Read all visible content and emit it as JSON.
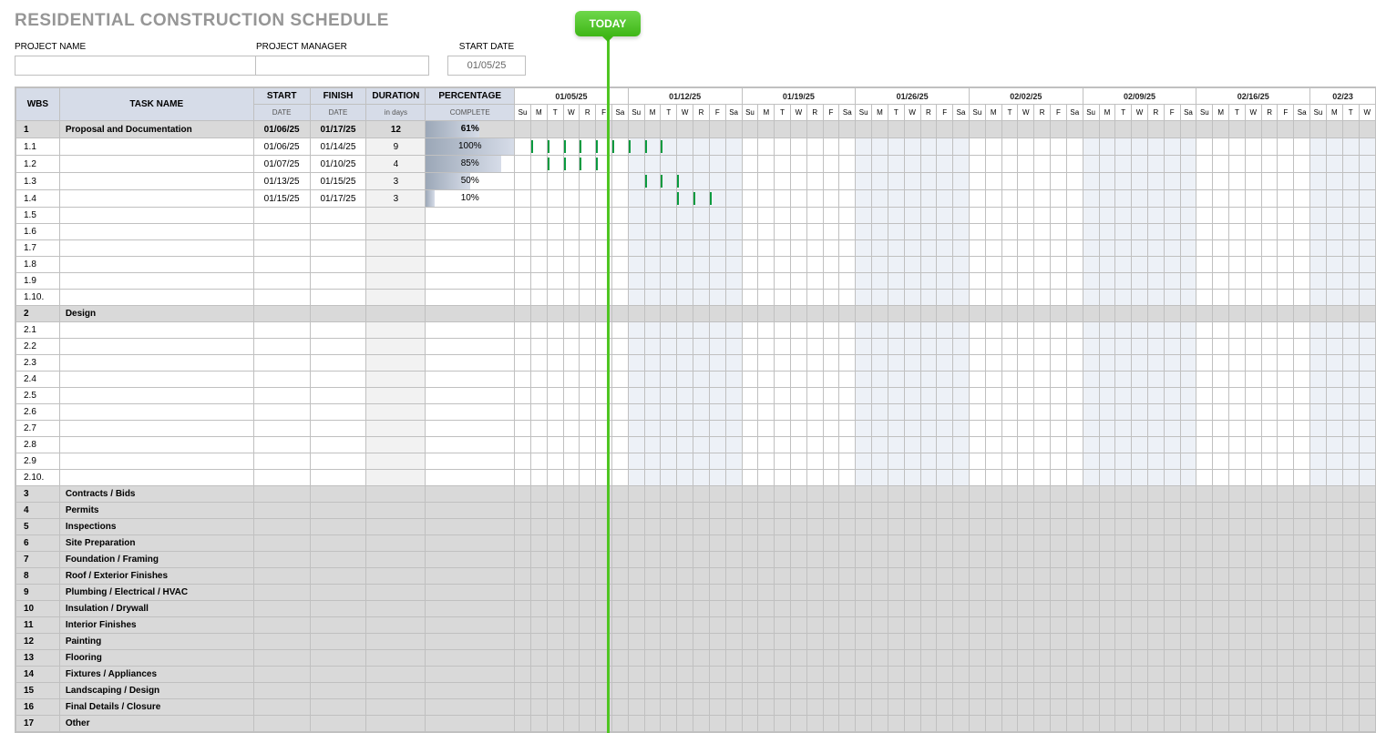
{
  "title": "RESIDENTIAL CONSTRUCTION SCHEDULE",
  "meta": {
    "project_name_label": "PROJECT NAME",
    "project_manager_label": "PROJECT MANAGER",
    "start_date_label": "START DATE",
    "start_date_value": "01/05/25",
    "today_label": "TODAY"
  },
  "columns": {
    "wbs": "WBS",
    "task": "TASK NAME",
    "start": "START",
    "start_sub": "DATE",
    "finish": "FINISH",
    "finish_sub": "DATE",
    "duration": "DURATION",
    "duration_sub": "in days",
    "pct": "PERCENTAGE",
    "pct_sub": "COMPLETE"
  },
  "weeks": [
    "01/05/25",
    "01/12/25",
    "01/19/25",
    "01/26/25",
    "02/02/25",
    "02/09/25",
    "02/16/25",
    "02/23"
  ],
  "days": [
    "Su",
    "M",
    "T",
    "W",
    "R",
    "F",
    "Sa"
  ],
  "today_offset_day": 6,
  "colors": {
    "header_bg": "#d6dce8",
    "phase_bg": "#d9d9d9",
    "alt_week_bg": "#edf1f7",
    "bar_green": "#0db54b",
    "today_line": "#4fc522",
    "pct_bar": "#9ba7b7",
    "title_color": "#969696"
  },
  "rows": [
    {
      "wbs": "1",
      "task": "Proposal and Documentation",
      "start": "01/06/25",
      "finish": "01/17/25",
      "dur": "12",
      "pct": 61,
      "phase": true
    },
    {
      "wbs": "1.1",
      "task": "",
      "start": "01/06/25",
      "finish": "01/14/25",
      "dur": "9",
      "pct": 100,
      "bar_start": 1,
      "bar_end": 9
    },
    {
      "wbs": "1.2",
      "task": "",
      "start": "01/07/25",
      "finish": "01/10/25",
      "dur": "4",
      "pct": 85,
      "bar_start": 2,
      "bar_end": 5
    },
    {
      "wbs": "1.3",
      "task": "",
      "start": "01/13/25",
      "finish": "01/15/25",
      "dur": "3",
      "pct": 50,
      "bar_start": 8,
      "bar_end": 10
    },
    {
      "wbs": "1.4",
      "task": "",
      "start": "01/15/25",
      "finish": "01/17/25",
      "dur": "3",
      "pct": 10,
      "bar_start": 10,
      "bar_end": 12
    },
    {
      "wbs": "1.5",
      "task": ""
    },
    {
      "wbs": "1.6",
      "task": ""
    },
    {
      "wbs": "1.7",
      "task": ""
    },
    {
      "wbs": "1.8",
      "task": ""
    },
    {
      "wbs": "1.9",
      "task": ""
    },
    {
      "wbs": "1.10.",
      "task": ""
    },
    {
      "wbs": "2",
      "task": "Design",
      "phase": true
    },
    {
      "wbs": "2.1",
      "task": ""
    },
    {
      "wbs": "2.2",
      "task": ""
    },
    {
      "wbs": "2.3",
      "task": ""
    },
    {
      "wbs": "2.4",
      "task": ""
    },
    {
      "wbs": "2.5",
      "task": ""
    },
    {
      "wbs": "2.6",
      "task": ""
    },
    {
      "wbs": "2.7",
      "task": ""
    },
    {
      "wbs": "2.8",
      "task": ""
    },
    {
      "wbs": "2.9",
      "task": ""
    },
    {
      "wbs": "2.10.",
      "task": ""
    },
    {
      "wbs": "3",
      "task": "Contracts / Bids",
      "phase": true
    },
    {
      "wbs": "4",
      "task": "Permits",
      "phase": true
    },
    {
      "wbs": "5",
      "task": "Inspections",
      "phase": true
    },
    {
      "wbs": "6",
      "task": "Site Preparation",
      "phase": true
    },
    {
      "wbs": "7",
      "task": "Foundation / Framing",
      "phase": true
    },
    {
      "wbs": "8",
      "task": "Roof / Exterior Finishes",
      "phase": true
    },
    {
      "wbs": "9",
      "task": "Plumbing / Electrical / HVAC",
      "phase": true
    },
    {
      "wbs": "10",
      "task": "Insulation / Drywall",
      "phase": true
    },
    {
      "wbs": "11",
      "task": "Interior Finishes",
      "phase": true
    },
    {
      "wbs": "12",
      "task": "Painting",
      "phase": true
    },
    {
      "wbs": "13",
      "task": "Flooring",
      "phase": true
    },
    {
      "wbs": "14",
      "task": "Fixtures / Appliances",
      "phase": true
    },
    {
      "wbs": "15",
      "task": "Landscaping / Design",
      "phase": true
    },
    {
      "wbs": "16",
      "task": "Final Details / Closure",
      "phase": true
    },
    {
      "wbs": "17",
      "task": "Other",
      "phase": true
    }
  ]
}
